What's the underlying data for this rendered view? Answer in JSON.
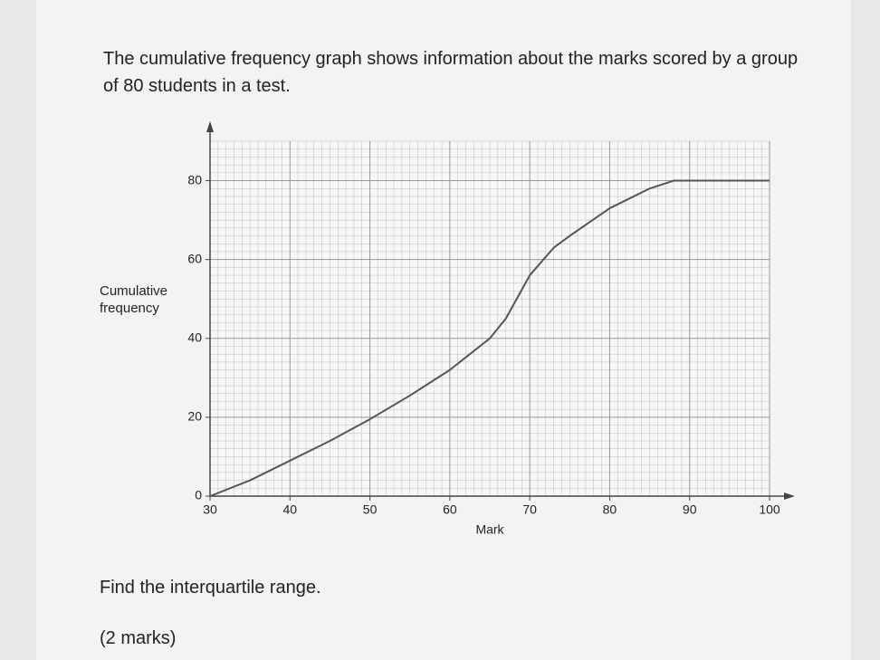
{
  "intro": "The cumulative frequency graph shows information about the marks scored by a group of 80 students in a test.",
  "question": "Find the interquartile range.",
  "marks": "(2 marks)",
  "chart_data": {
    "type": "line",
    "xlabel": "Mark",
    "ylabel": "Cumulative frequency",
    "x": [
      30,
      35,
      40,
      45,
      50,
      55,
      60,
      65,
      67,
      70,
      73,
      75,
      80,
      85,
      88,
      100
    ],
    "series": [
      {
        "name": "Cumulative frequency",
        "color": "#555555",
        "values": [
          0,
          4,
          9,
          14,
          19.5,
          25.5,
          32,
          40,
          45,
          56,
          63,
          66,
          73,
          78,
          80,
          80
        ]
      }
    ],
    "xlim": [
      30,
      100
    ],
    "ylim": [
      0,
      90
    ],
    "xticks": [
      30,
      40,
      50,
      60,
      70,
      80,
      90,
      100
    ],
    "yticks": [
      0,
      20,
      40,
      60,
      80
    ],
    "grid": true
  }
}
